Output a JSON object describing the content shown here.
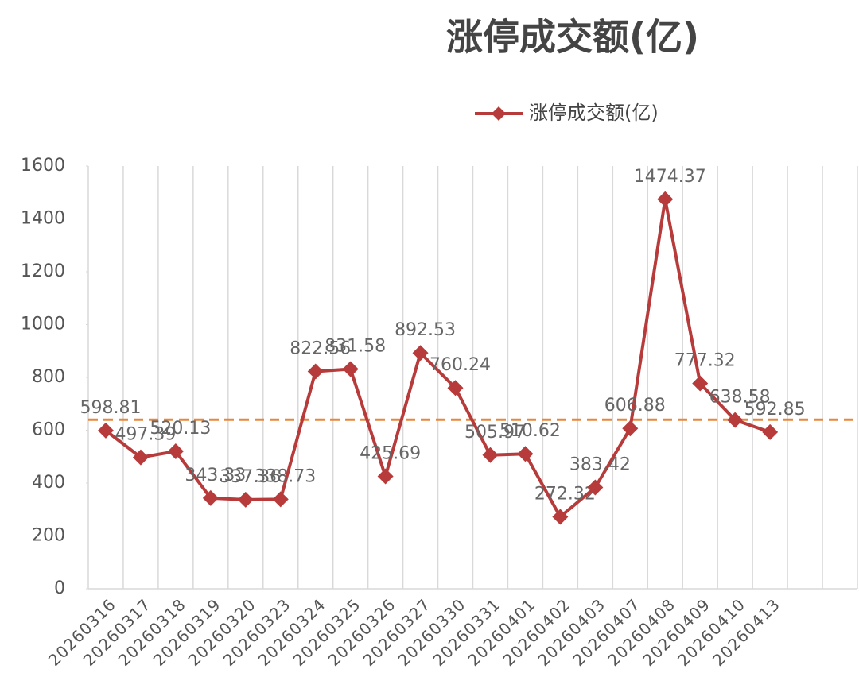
{
  "chart_data": {
    "type": "line",
    "title": "涨停成交额(亿)",
    "categories": [
      "20260316",
      "20260317",
      "20260318",
      "20260319",
      "20260320",
      "20260323",
      "20260324",
      "20260325",
      "20260326",
      "20260327",
      "20260330",
      "20260331",
      "20260401",
      "20260402",
      "20260403",
      "20260407",
      "20260408",
      "20260409",
      "20260410",
      "20260413",
      null,
      null
    ],
    "series": [
      {
        "name": "涨停成交额(亿)",
        "color": "#b83b3b",
        "values": [
          598.81,
          497.39,
          520.13,
          343.33,
          337.36,
          338.73,
          822.56,
          831.58,
          425.69,
          892.53,
          760.24,
          505.97,
          510.62,
          272.32,
          383.42,
          606.88,
          1474.37,
          777.32,
          638.58,
          592.85,
          null,
          null
        ]
      }
    ],
    "reference_line": {
      "value": 640,
      "color": "#e8873a"
    },
    "ylim": [
      0,
      1600
    ],
    "yticks": [
      0,
      200,
      400,
      600,
      800,
      1000,
      1200,
      1400,
      1600
    ],
    "grid": "vertical",
    "legend": "top"
  }
}
